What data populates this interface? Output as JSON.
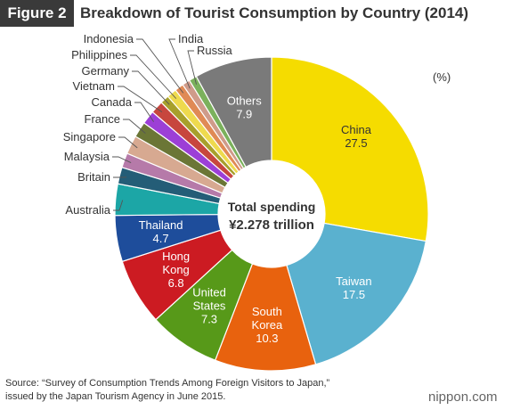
{
  "header": {
    "figure_label": "Figure 2",
    "title": "Breakdown of Tourist Consumption by Country (2014)"
  },
  "unit_label": "(%)",
  "source": {
    "line1": "Source: “Survey of Consumption Trends Among Foreign Visitors to Japan,”",
    "line2": "issued by the Japan Tourism Agency in June 2015."
  },
  "brand": "nippon.com",
  "chart_data": {
    "type": "pie",
    "title": "Breakdown of Tourist Consumption by Country (2014)",
    "unit": "(%)",
    "center_label": [
      "Total spending",
      "¥2.278 trillion"
    ],
    "slices": [
      {
        "name": "China",
        "value": 27.5,
        "color": "#f5dc00",
        "value_label": "27.5",
        "label_color": "#333333"
      },
      {
        "name": "Taiwan",
        "value": 17.5,
        "color": "#5ab1cf",
        "value_label": "17.5",
        "label_color": "#ffffff"
      },
      {
        "name": "South Korea",
        "value": 10.3,
        "color": "#e8620e",
        "value_label": "10.3",
        "label_color": "#ffffff"
      },
      {
        "name": "United States",
        "value": 7.3,
        "color": "#579919",
        "value_label": "7.3",
        "label_color": "#ffffff"
      },
      {
        "name": "Hong Kong",
        "value": 6.8,
        "color": "#cc1b22",
        "value_label": "6.8",
        "label_color": "#ffffff"
      },
      {
        "name": "Thailand",
        "value": 4.7,
        "color": "#1e4d9b",
        "value_label": "4.7",
        "label_color": "#ffffff"
      },
      {
        "name": "Australia",
        "value": 3.2,
        "color": "#1ca6a6"
      },
      {
        "name": "Britain",
        "value": 1.7,
        "color": "#245d77"
      },
      {
        "name": "Malaysia",
        "value": 1.5,
        "color": "#b67aa9"
      },
      {
        "name": "Singapore",
        "value": 1.9,
        "color": "#d7a991"
      },
      {
        "name": "France",
        "value": 1.6,
        "color": "#6b7636"
      },
      {
        "name": "Canada",
        "value": 1.4,
        "color": "#9c3fd6"
      },
      {
        "name": "Vietnam",
        "value": 1.3,
        "color": "#c7463e"
      },
      {
        "name": "Germany",
        "value": 0.9,
        "color": "#a7a02b"
      },
      {
        "name": "Philippines",
        "value": 1.0,
        "color": "#eeda4e"
      },
      {
        "name": "Indonesia",
        "value": 0.9,
        "color": "#e08a55"
      },
      {
        "name": "India",
        "value": 0.8,
        "color": "#cf9b8a"
      },
      {
        "name": "Russia",
        "value": 0.8,
        "color": "#7bb15c"
      },
      {
        "name": "Others",
        "value": 7.9,
        "color": "#7a7a7a",
        "value_label": "7.9",
        "label_color": "#ffffff"
      }
    ]
  }
}
